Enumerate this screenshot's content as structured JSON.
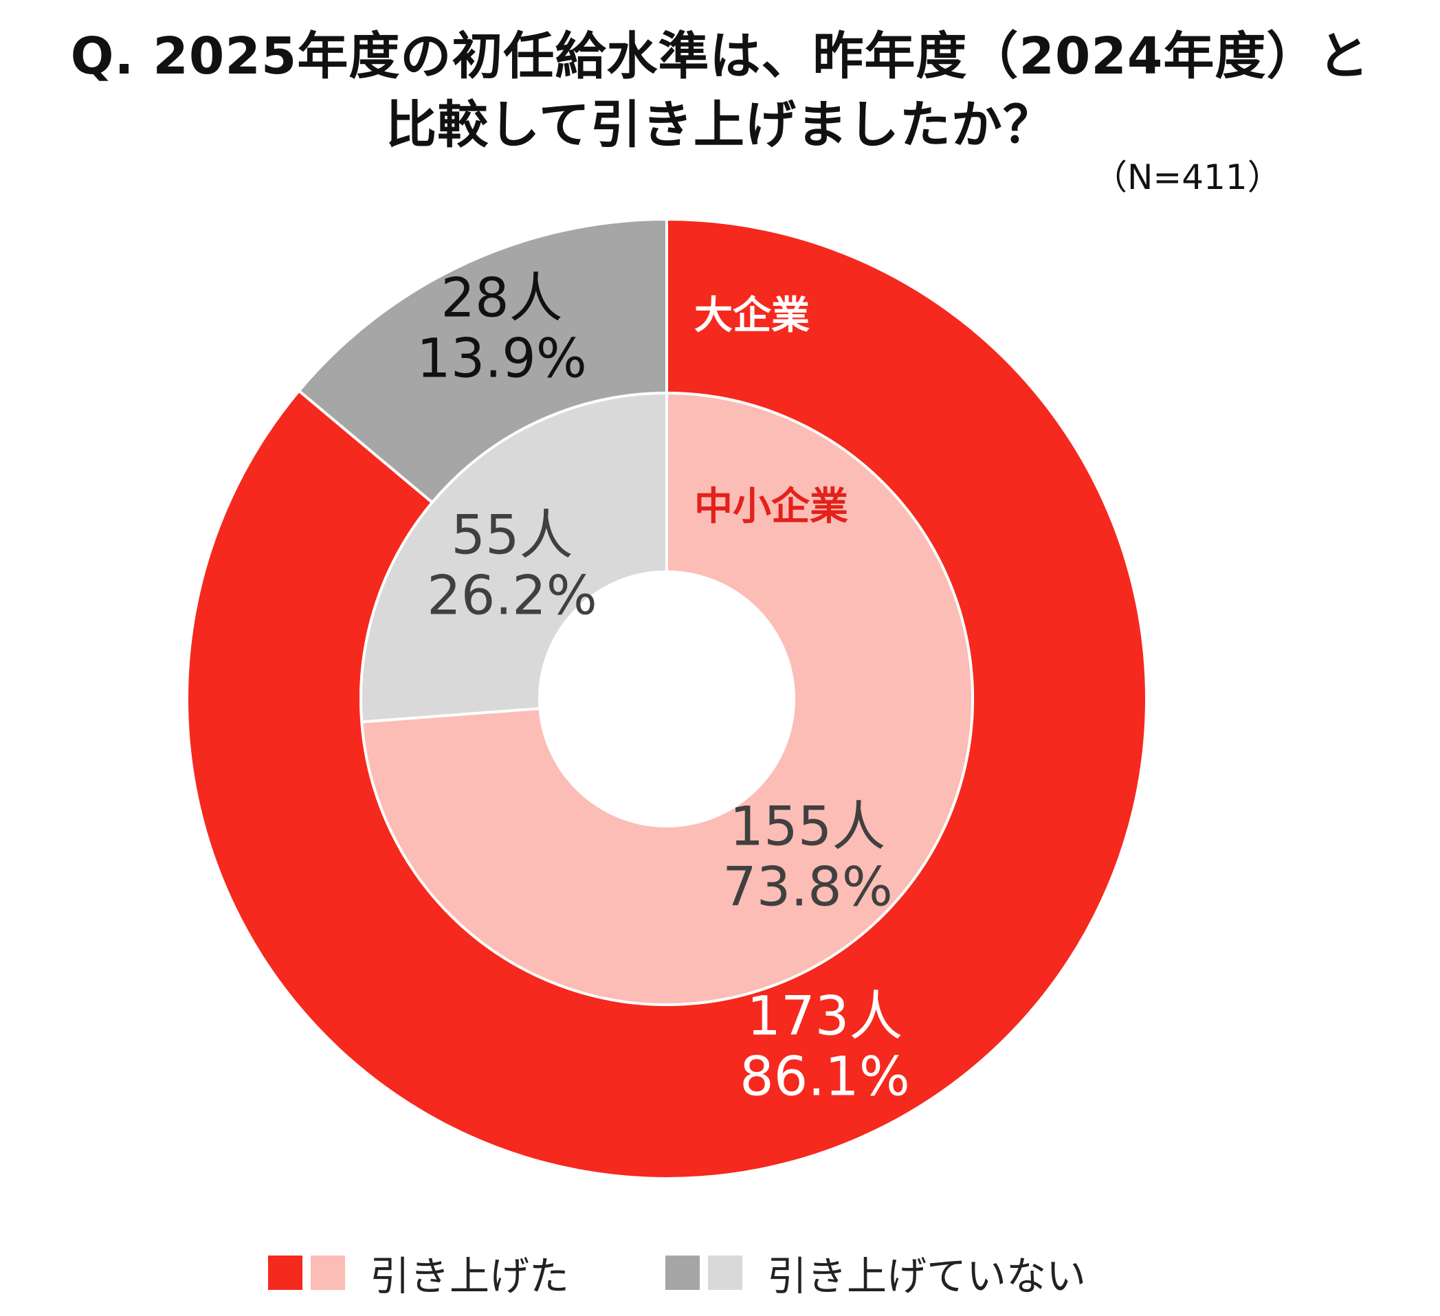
{
  "title": {
    "line1": "Q. 2025年度の初任給水準は、昨年度（2024年度）と",
    "line2": "比較して引き上げましたか？"
  },
  "sample_size": "（N=411）",
  "colors": {
    "large_raised": "#f5291e",
    "large_not_raised": "#a6a6a6",
    "small_raised": "#fbbdb5",
    "small_not_raised": "#d9d9d9",
    "outer_label_text": "#111111",
    "outer_raised_label_text": "#ffffff",
    "inner_label_text": "#404040",
    "small_ring_title": "#e3211b",
    "large_ring_title": "#ffffff"
  },
  "legend": {
    "raised_label": "引き上げた",
    "not_raised_label": "引き上げていない"
  },
  "chart_data": {
    "type": "donut",
    "title": "Q. 2025年度の初任給水準は、昨年度（2024年度）と比較して引き上げましたか？",
    "n_label": "（N=411）",
    "categories": [
      "引き上げた",
      "引き上げていない"
    ],
    "series": [
      {
        "name": "大企業",
        "ring": "outer",
        "values": [
          86.1,
          13.9
        ],
        "counts": [
          173,
          28
        ],
        "labels": [
          {
            "count": "173人",
            "percent": "86.1%"
          },
          {
            "count": "28人",
            "percent": "13.9%"
          }
        ]
      },
      {
        "name": "中小企業",
        "ring": "inner",
        "values": [
          73.8,
          26.2
        ],
        "counts": [
          155,
          55
        ],
        "labels": [
          {
            "count": "155人",
            "percent": "73.8%"
          },
          {
            "count": "55人",
            "percent": "26.2%"
          }
        ]
      }
    ],
    "legend_position": "bottom"
  }
}
